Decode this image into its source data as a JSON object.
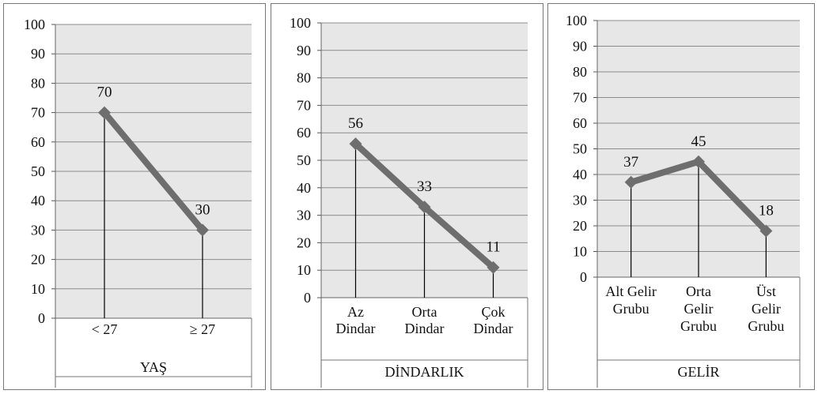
{
  "chart_data": [
    {
      "type": "line",
      "categories": [
        "< 27",
        "≥ 27"
      ],
      "values": [
        70,
        30
      ],
      "data_labels": [
        "70",
        "30"
      ],
      "xlabel": "YAŞ",
      "ylim": [
        0,
        100
      ],
      "yticks": [
        "0",
        "10",
        "20",
        "30",
        "40",
        "50",
        "60",
        "70",
        "80",
        "90",
        "100"
      ],
      "grid": true,
      "line_color": "#6e6e6e",
      "plot_bg": "#e7e7e7"
    },
    {
      "type": "line",
      "categories": [
        "Az|Dindar",
        "Orta|Dindar",
        "Çok|Dindar"
      ],
      "values": [
        56,
        33,
        11
      ],
      "data_labels": [
        "56",
        "33",
        "11"
      ],
      "xlabel": "DİNDARLIK",
      "ylim": [
        0,
        100
      ],
      "yticks": [
        "0",
        "10",
        "20",
        "30",
        "40",
        "50",
        "60",
        "70",
        "80",
        "90",
        "100"
      ],
      "grid": true,
      "line_color": "#6e6e6e",
      "plot_bg": "#e7e7e7"
    },
    {
      "type": "line",
      "categories": [
        "Alt Gelir|Grubu",
        "Orta|Gelir|Grubu",
        "Üst|Gelir|Grubu"
      ],
      "values": [
        37,
        45,
        18
      ],
      "data_labels": [
        "37",
        "45",
        "18"
      ],
      "xlabel": "GELİR",
      "ylim": [
        0,
        100
      ],
      "yticks": [
        "0",
        "10",
        "20",
        "30",
        "40",
        "50",
        "60",
        "70",
        "80",
        "90",
        "100"
      ],
      "grid": true,
      "line_color": "#6e6e6e",
      "plot_bg": "#e7e7e7"
    }
  ]
}
